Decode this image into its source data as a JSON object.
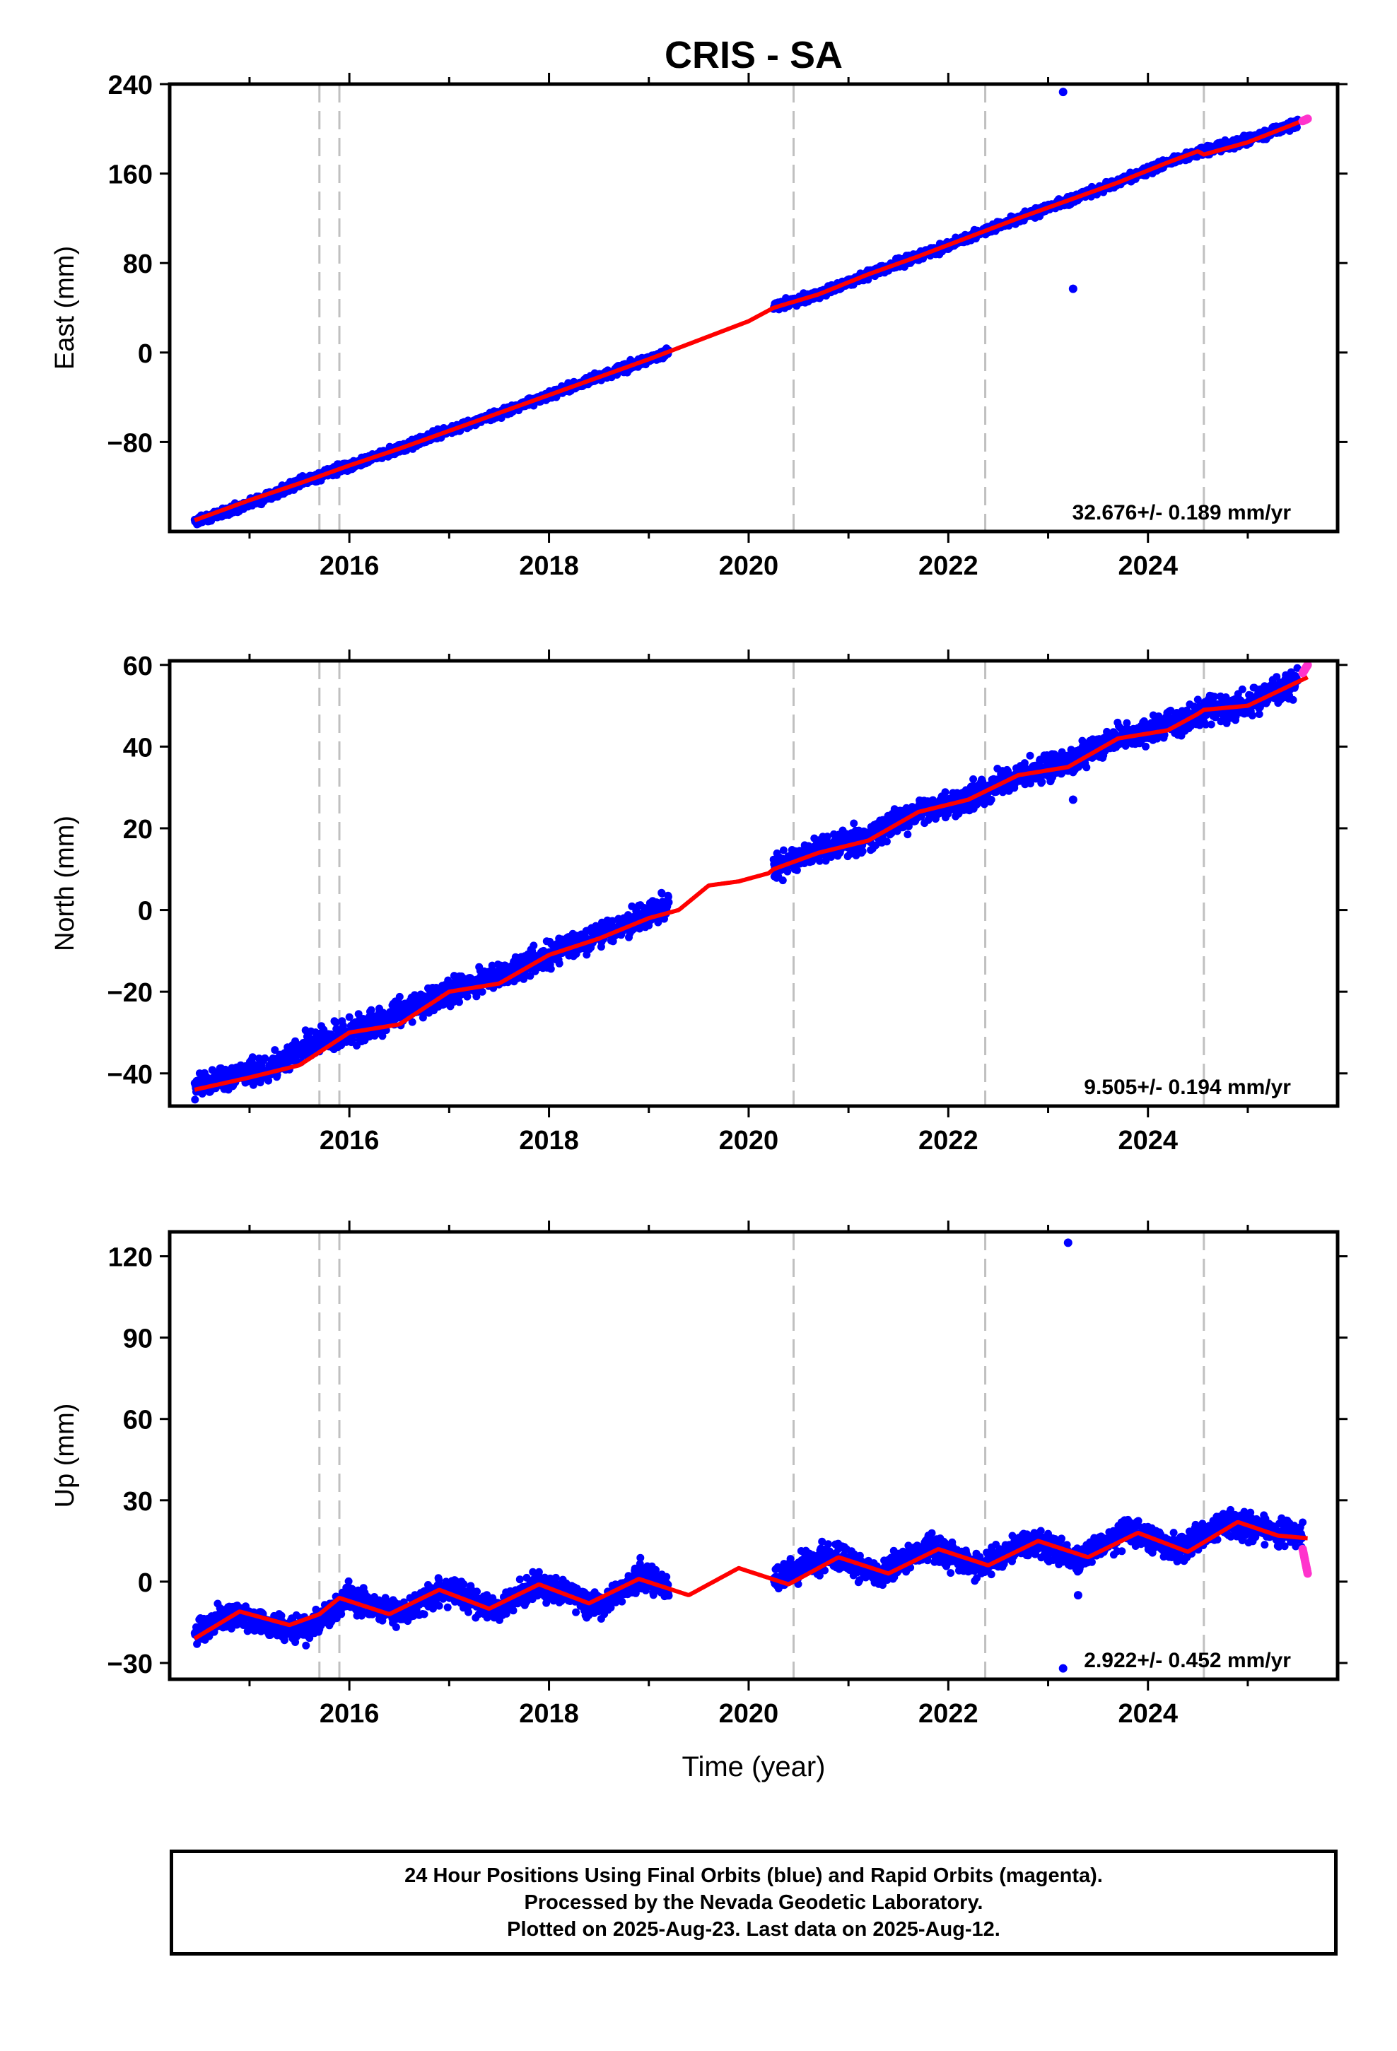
{
  "title": "CRIS - SA",
  "xlabel": "Time (year)",
  "footer": {
    "line1": "24 Hour Positions Using Final Orbits (blue) and Rapid Orbits (magenta).",
    "line2": "Processed by the Nevada Geodetic Laboratory.",
    "line3": "Plotted on 2025-Aug-23. Last data on 2025-Aug-12."
  },
  "colors": {
    "final": "#0000ff",
    "rapid": "#ff33cc",
    "model": "#ff0000",
    "events": "#c0c0c0"
  },
  "chart_data": [
    {
      "type": "scatter",
      "ylabel": "East (mm)",
      "xlim": [
        2014.2,
        2025.9
      ],
      "ylim": [
        -160,
        240
      ],
      "yticks": [
        240,
        160,
        80,
        0,
        -80
      ],
      "xticks": [
        2016,
        2018,
        2020,
        2022,
        2024
      ],
      "events": [
        2015.7,
        2015.9,
        2020.45,
        2022.37,
        2024.56
      ],
      "rate_label": "32.676+/- 0.189 mm/yr",
      "series": [
        {
          "kind": "final",
          "points": [
            [
              2014.45,
              -151
            ],
            [
              2014.8,
              -141
            ],
            [
              2015.2,
              -128
            ],
            [
              2015.6,
              -113
            ],
            [
              2016.0,
              -101
            ],
            [
              2016.5,
              -86
            ],
            [
              2017.0,
              -70
            ],
            [
              2017.5,
              -54
            ],
            [
              2018.0,
              -38
            ],
            [
              2018.5,
              -22
            ],
            [
              2019.0,
              -6
            ],
            [
              2019.2,
              1
            ],
            [
              2020.25,
              41
            ],
            [
              2020.7,
              52
            ],
            [
              2021.2,
              70
            ],
            [
              2021.7,
              86
            ],
            [
              2022.2,
              103
            ],
            [
              2022.7,
              120
            ],
            [
              2023.2,
              136
            ],
            [
              2023.7,
              152
            ],
            [
              2024.2,
              170
            ],
            [
              2024.6,
              181
            ],
            [
              2025.0,
              190
            ],
            [
              2025.5,
              205
            ]
          ]
        },
        {
          "kind": "outlier",
          "points": [
            [
              2023.15,
              233
            ],
            [
              2023.25,
              57
            ]
          ]
        },
        {
          "kind": "rapid",
          "points": [
            [
              2025.55,
              207
            ],
            [
              2025.6,
              209
            ]
          ]
        }
      ],
      "model": [
        [
          2014.45,
          -150
        ],
        [
          2015.0,
          -132
        ],
        [
          2015.5,
          -117
        ],
        [
          2016.0,
          -101
        ],
        [
          2016.5,
          -86
        ],
        [
          2017.0,
          -70
        ],
        [
          2017.5,
          -54
        ],
        [
          2018.0,
          -38
        ],
        [
          2018.5,
          -22
        ],
        [
          2019.0,
          -6
        ],
        [
          2019.5,
          11
        ],
        [
          2020.0,
          28
        ],
        [
          2020.25,
          40
        ],
        [
          2020.7,
          52
        ],
        [
          2021.2,
          70
        ],
        [
          2021.7,
          86
        ],
        [
          2022.2,
          103
        ],
        [
          2022.7,
          120
        ],
        [
          2023.2,
          136
        ],
        [
          2023.7,
          152
        ],
        [
          2024.2,
          170
        ],
        [
          2024.5,
          180
        ],
        [
          2024.56,
          177
        ],
        [
          2025.0,
          188
        ],
        [
          2025.6,
          209
        ]
      ]
    },
    {
      "type": "scatter",
      "ylabel": "North (mm)",
      "xlim": [
        2014.2,
        2025.9
      ],
      "ylim": [
        -48,
        61
      ],
      "yticks": [
        60,
        40,
        20,
        0,
        -20,
        -40
      ],
      "xticks": [
        2016,
        2018,
        2020,
        2022,
        2024
      ],
      "events": [
        2015.7,
        2015.9,
        2020.45,
        2022.37,
        2024.56
      ],
      "rate_label": "9.505+/- 0.194 mm/yr",
      "series": [
        {
          "kind": "final",
          "points": [
            [
              2014.45,
              -43
            ],
            [
              2014.8,
              -41
            ],
            [
              2015.2,
              -39
            ],
            [
              2015.6,
              -33
            ],
            [
              2016.0,
              -30
            ],
            [
              2016.5,
              -25
            ],
            [
              2017.0,
              -20
            ],
            [
              2017.5,
              -16
            ],
            [
              2018.0,
              -11
            ],
            [
              2018.5,
              -6
            ],
            [
              2019.0,
              -1
            ],
            [
              2019.2,
              1
            ],
            [
              2020.25,
              10
            ],
            [
              2020.7,
              14
            ],
            [
              2021.2,
              18
            ],
            [
              2021.7,
              24
            ],
            [
              2022.2,
              27
            ],
            [
              2022.7,
              33
            ],
            [
              2023.2,
              36
            ],
            [
              2023.7,
              42
            ],
            [
              2024.2,
              45
            ],
            [
              2024.6,
              49
            ],
            [
              2025.0,
              50
            ],
            [
              2025.5,
              56
            ]
          ]
        },
        {
          "kind": "outlier",
          "points": [
            [
              2023.25,
              27
            ]
          ]
        },
        {
          "kind": "rapid",
          "points": [
            [
              2025.55,
              58
            ],
            [
              2025.6,
              60
            ]
          ]
        }
      ],
      "model": [
        [
          2014.45,
          -44
        ],
        [
          2015.0,
          -41
        ],
        [
          2015.5,
          -38
        ],
        [
          2016.0,
          -30
        ],
        [
          2016.5,
          -28
        ],
        [
          2017.0,
          -20
        ],
        [
          2017.5,
          -18
        ],
        [
          2018.0,
          -11
        ],
        [
          2018.5,
          -7
        ],
        [
          2019.0,
          -2
        ],
        [
          2019.3,
          0
        ],
        [
          2019.6,
          6
        ],
        [
          2019.9,
          7
        ],
        [
          2020.2,
          9
        ],
        [
          2020.25,
          10
        ],
        [
          2020.7,
          14
        ],
        [
          2021.2,
          17
        ],
        [
          2021.7,
          24
        ],
        [
          2022.2,
          27
        ],
        [
          2022.7,
          33
        ],
        [
          2023.2,
          35
        ],
        [
          2023.7,
          42
        ],
        [
          2024.2,
          44
        ],
        [
          2024.5,
          48
        ],
        [
          2024.56,
          49
        ],
        [
          2025.0,
          50
        ],
        [
          2025.6,
          57
        ]
      ]
    },
    {
      "type": "scatter",
      "ylabel": "Up (mm)",
      "xlim": [
        2014.2,
        2025.9
      ],
      "ylim": [
        -36,
        129
      ],
      "yticks": [
        120,
        90,
        60,
        30,
        0,
        -30
      ],
      "xticks": [
        2016,
        2018,
        2020,
        2022,
        2024
      ],
      "events": [
        2015.7,
        2015.9,
        2020.45,
        2022.37,
        2024.56
      ],
      "rate_label": "2.922+/- 0.452 mm/yr",
      "series": [
        {
          "kind": "final",
          "points": [
            [
              2014.45,
              -19
            ],
            [
              2014.8,
              -12
            ],
            [
              2015.2,
              -16
            ],
            [
              2015.6,
              -18
            ],
            [
              2016.0,
              -6
            ],
            [
              2016.5,
              -12
            ],
            [
              2016.9,
              -3
            ],
            [
              2017.5,
              -10
            ],
            [
              2017.9,
              -1
            ],
            [
              2018.5,
              -9
            ],
            [
              2018.9,
              2
            ],
            [
              2019.2,
              -2
            ],
            [
              2020.25,
              1
            ],
            [
              2020.8,
              10
            ],
            [
              2021.3,
              3
            ],
            [
              2021.8,
              13
            ],
            [
              2022.3,
              5
            ],
            [
              2022.8,
              15
            ],
            [
              2023.3,
              8
            ],
            [
              2023.8,
              19
            ],
            [
              2024.3,
              12
            ],
            [
              2024.8,
              22
            ],
            [
              2025.3,
              18
            ],
            [
              2025.55,
              17
            ]
          ]
        },
        {
          "kind": "outlier",
          "points": [
            [
              2023.2,
              125
            ],
            [
              2023.15,
              -32
            ],
            [
              2023.3,
              -5
            ]
          ]
        },
        {
          "kind": "rapid",
          "points": [
            [
              2025.55,
              12
            ],
            [
              2025.6,
              3
            ]
          ]
        }
      ],
      "model": [
        [
          2014.45,
          -21
        ],
        [
          2014.9,
          -11
        ],
        [
          2015.4,
          -16
        ],
        [
          2015.7,
          -12
        ],
        [
          2015.9,
          -6
        ],
        [
          2016.4,
          -12
        ],
        [
          2016.9,
          -3
        ],
        [
          2017.4,
          -10
        ],
        [
          2017.9,
          -1
        ],
        [
          2018.4,
          -8
        ],
        [
          2018.9,
          1
        ],
        [
          2019.4,
          -5
        ],
        [
          2019.9,
          5
        ],
        [
          2020.4,
          -1
        ],
        [
          2020.9,
          9
        ],
        [
          2021.4,
          3
        ],
        [
          2021.9,
          12
        ],
        [
          2022.4,
          6
        ],
        [
          2022.9,
          15
        ],
        [
          2023.4,
          9
        ],
        [
          2023.9,
          18
        ],
        [
          2024.4,
          11
        ],
        [
          2024.9,
          22
        ],
        [
          2025.3,
          17
        ],
        [
          2025.6,
          16
        ]
      ]
    }
  ]
}
